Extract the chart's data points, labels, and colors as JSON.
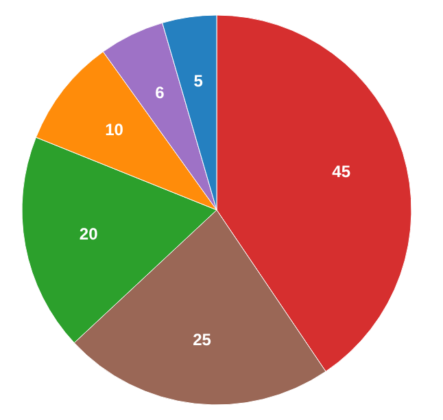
{
  "chart_data": {
    "type": "pie",
    "categories": [
      null,
      null,
      null,
      null,
      null,
      null
    ],
    "values": [
      45,
      25,
      20,
      10,
      6,
      5
    ],
    "colors": [
      "#d62f2f",
      "#9a6756",
      "#2ca02c",
      "#ff8c0a",
      "#9e72c6",
      "#2580c0"
    ],
    "data_labels": true
  }
}
